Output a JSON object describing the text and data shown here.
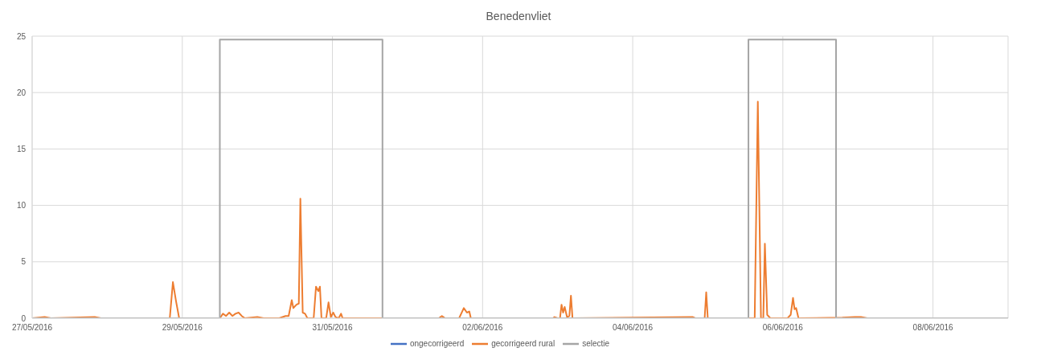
{
  "chart_data": {
    "type": "line",
    "title": "Benedenvliet",
    "xlim": [
      "2016-05-27",
      "2016-06-09"
    ],
    "xticks": [
      {
        "value": "2016-05-27",
        "label": "27/05/2016"
      },
      {
        "value": "2016-05-29",
        "label": "29/05/2016"
      },
      {
        "value": "2016-05-31",
        "label": "31/05/2016"
      },
      {
        "value": "2016-06-02",
        "label": "02/06/2016"
      },
      {
        "value": "2016-06-04",
        "label": "04/06/2016"
      },
      {
        "value": "2016-06-06",
        "label": "06/06/2016"
      },
      {
        "value": "2016-06-08",
        "label": "08/06/2016"
      }
    ],
    "ylim": [
      0,
      25
    ],
    "yticks": [
      0,
      5,
      10,
      15,
      20,
      25
    ],
    "grid": true,
    "legend": "bottom",
    "marker": "none",
    "line_style": "solid",
    "series": [
      {
        "name": "ongecorrigeerd",
        "color": "#4472c4"
      },
      {
        "name": "gecorrigeerd rural",
        "color": "#ed7d31",
        "x": [
          "2016-05-27T00:00",
          "2016-05-27T04:00",
          "2016-05-27T06:00",
          "2016-05-27T20:00",
          "2016-05-27T22:00",
          "2016-05-28T20:00",
          "2016-05-28T21:00",
          "2016-05-28T22:00",
          "2016-05-28T23:00",
          "2016-05-29T12:00",
          "2016-05-29T13:00",
          "2016-05-29T14:00",
          "2016-05-29T15:00",
          "2016-05-29T16:00",
          "2016-05-29T17:00",
          "2016-05-29T18:00",
          "2016-05-29T19:00",
          "2016-05-29T20:00",
          "2016-05-30T00:00",
          "2016-05-30T02:00",
          "2016-05-30T07:00",
          "2016-05-30T09:00",
          "2016-05-30T10:00",
          "2016-05-30T11:00",
          "2016-05-30T11:30",
          "2016-05-30T12:30",
          "2016-05-30T13:15",
          "2016-05-30T13:45",
          "2016-05-30T14:30",
          "2016-05-30T15:15",
          "2016-05-30T16:00",
          "2016-05-30T18:00",
          "2016-05-30T18:45",
          "2016-05-30T19:30",
          "2016-05-30T20:00",
          "2016-05-30T20:30",
          "2016-05-30T22:00",
          "2016-05-30T22:45",
          "2016-05-30T23:30",
          "2016-05-31T00:15",
          "2016-05-31T01:00",
          "2016-05-31T02:00",
          "2016-05-31T02:45",
          "2016-05-31T03:15",
          "2016-06-01T10:00",
          "2016-06-01T11:00",
          "2016-06-01T12:00",
          "2016-06-01T16:30",
          "2016-06-01T18:00",
          "2016-06-01T19:00",
          "2016-06-01T19:45",
          "2016-06-01T20:15",
          "2016-06-02T22:30",
          "2016-06-02T23:00",
          "2016-06-03T00:00",
          "2016-06-03T00:45",
          "2016-06-03T01:15",
          "2016-06-03T01:45",
          "2016-06-03T02:15",
          "2016-06-03T03:00",
          "2016-06-03T03:45",
          "2016-06-03T04:15",
          "2016-06-03T04:45",
          "2016-06-04T19:15",
          "2016-06-04T20:00",
          "2016-06-04T23:00",
          "2016-06-04T23:30",
          "2016-06-05T00:00",
          "2016-06-05T15:00",
          "2016-06-05T16:00",
          "2016-06-05T17:00",
          "2016-06-05T17:45",
          "2016-06-05T18:15",
          "2016-06-05T19:00",
          "2016-06-05T20:00",
          "2016-06-06T01:30",
          "2016-06-06T02:30",
          "2016-06-06T03:15",
          "2016-06-06T03:45",
          "2016-06-06T04:15",
          "2016-06-06T05:00",
          "2016-06-06T19:00",
          "2016-06-06T23:00",
          "2016-06-07T01:00",
          "2016-06-07T03:00",
          "2016-06-09T00:00"
        ],
        "values": [
          0,
          0.1,
          0,
          0.1,
          0,
          0,
          3.2,
          1.5,
          0,
          0,
          0.4,
          0.2,
          0.5,
          0.2,
          0.4,
          0.5,
          0.2,
          0,
          0.1,
          0,
          0,
          0.2,
          0.2,
          1.6,
          0.9,
          1.2,
          1.3,
          10.6,
          0.5,
          0.4,
          0,
          0,
          2.8,
          2.4,
          2.8,
          0,
          0,
          1.4,
          0.1,
          0.5,
          0.1,
          0,
          0.4,
          0,
          0,
          0.2,
          0,
          0,
          0.9,
          0.5,
          0.6,
          0,
          0,
          0.1,
          0,
          0,
          1.2,
          0.5,
          1.0,
          0.1,
          0.2,
          2.0,
          0,
          0.1,
          0,
          0,
          2.3,
          0,
          0,
          19.2,
          0,
          0,
          6.6,
          0.3,
          0,
          0,
          0.3,
          1.8,
          0.8,
          0.9,
          0,
          0.05,
          0.1,
          0.1,
          0,
          0
        ]
      },
      {
        "name": "selectie",
        "color": "#a5a5a5",
        "x": [
          "2016-05-27T00:00",
          "2016-05-29T12:00",
          "2016-05-29T12:00",
          "2016-05-31T16:00",
          "2016-05-31T16:00",
          "2016-06-05T13:00",
          "2016-06-05T13:00",
          "2016-06-06T17:00",
          "2016-06-06T17:00",
          "2016-06-09T00:00"
        ],
        "values": [
          0,
          0,
          24.7,
          24.7,
          0,
          0,
          24.7,
          24.7,
          0,
          0
        ]
      }
    ]
  }
}
